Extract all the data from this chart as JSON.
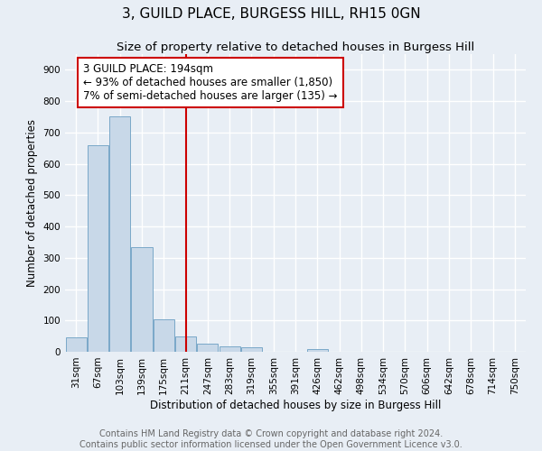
{
  "title": "3, GUILD PLACE, BURGESS HILL, RH15 0GN",
  "subtitle": "Size of property relative to detached houses in Burgess Hill",
  "xlabel": "Distribution of detached houses by size in Burgess Hill",
  "ylabel": "Number of detached properties",
  "categories": [
    "31sqm",
    "67sqm",
    "103sqm",
    "139sqm",
    "175sqm",
    "211sqm",
    "247sqm",
    "283sqm",
    "319sqm",
    "355sqm",
    "391sqm",
    "426sqm",
    "462sqm",
    "498sqm",
    "534sqm",
    "570sqm",
    "606sqm",
    "642sqm",
    "678sqm",
    "714sqm",
    "750sqm"
  ],
  "values": [
    47,
    660,
    750,
    335,
    105,
    50,
    25,
    17,
    13,
    0,
    0,
    10,
    0,
    0,
    0,
    0,
    0,
    0,
    0,
    0,
    0
  ],
  "bar_color": "#c8d8e8",
  "bar_edge_color": "#7aa8c8",
  "vline_color": "#cc0000",
  "vline_x": 5.0,
  "annotation_title": "3 GUILD PLACE: 194sqm",
  "annotation_line1": "← 93% of detached houses are smaller (1,850)",
  "annotation_line2": "7% of semi-detached houses are larger (135) →",
  "box_edge_color": "#cc0000",
  "ylim": [
    0,
    950
  ],
  "yticks": [
    0,
    100,
    200,
    300,
    400,
    500,
    600,
    700,
    800,
    900
  ],
  "footer1": "Contains HM Land Registry data © Crown copyright and database right 2024.",
  "footer2": "Contains public sector information licensed under the Open Government Licence v3.0.",
  "bg_color": "#e8eef5",
  "plot_bg_color": "#e8eef5",
  "grid_color": "#ffffff",
  "title_fontsize": 11,
  "subtitle_fontsize": 9.5,
  "axis_label_fontsize": 8.5,
  "tick_fontsize": 7.5,
  "annotation_fontsize": 8.5,
  "footer_fontsize": 7
}
